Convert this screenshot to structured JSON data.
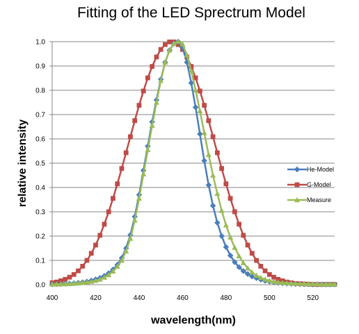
{
  "chart_data": {
    "type": "line",
    "title": "Fitting of the LED Sprectrum Model",
    "xlabel": "wavelength(nm)",
    "ylabel": "relative intensity",
    "xlim": [
      400,
      530
    ],
    "ylim": [
      0,
      1.0
    ],
    "x_ticks": [
      "400",
      "420",
      "440",
      "460",
      "480",
      "500",
      "520"
    ],
    "y_ticks": [
      "0.0",
      "0.1",
      "0.2",
      "0.3",
      "0.4",
      "0.5",
      "0.6",
      "0.7",
      "0.8",
      "0.9",
      "1.0"
    ],
    "grid": "horizontal",
    "legend_position": "right",
    "x": [
      400,
      402,
      404,
      406,
      408,
      410,
      412,
      414,
      416,
      418,
      420,
      422,
      424,
      426,
      428,
      430,
      432,
      434,
      436,
      438,
      440,
      442,
      444,
      446,
      448,
      450,
      452,
      454,
      456,
      458,
      460,
      462,
      464,
      466,
      468,
      470,
      472,
      474,
      476,
      478,
      480,
      482,
      484,
      486,
      488,
      490,
      492,
      494,
      496,
      498,
      500,
      502,
      504,
      506,
      508,
      510,
      512,
      514,
      516,
      518,
      520,
      522,
      524,
      526,
      528,
      530
    ],
    "series": [
      {
        "name": "He-Model",
        "color": "#4a7ebb",
        "marker": "diamond",
        "values": [
          0.002,
          0.002,
          0.003,
          0.004,
          0.005,
          0.006,
          0.008,
          0.01,
          0.013,
          0.017,
          0.022,
          0.028,
          0.036,
          0.047,
          0.062,
          0.082,
          0.11,
          0.15,
          0.205,
          0.28,
          0.37,
          0.47,
          0.57,
          0.67,
          0.76,
          0.845,
          0.915,
          0.965,
          0.992,
          1.0,
          0.975,
          0.915,
          0.83,
          0.73,
          0.62,
          0.51,
          0.41,
          0.325,
          0.255,
          0.2,
          0.155,
          0.12,
          0.093,
          0.072,
          0.056,
          0.044,
          0.034,
          0.027,
          0.021,
          0.016,
          0.013,
          0.01,
          0.008,
          0.006,
          0.005,
          0.004,
          0.003,
          0.002,
          0.002,
          0.002,
          0.001,
          0.001,
          0.001,
          0.001,
          0.001,
          0.001
        ]
      },
      {
        "name": "G-Model",
        "color": "#be4b48",
        "marker": "square",
        "values": [
          0.008,
          0.011,
          0.016,
          0.022,
          0.031,
          0.042,
          0.057,
          0.076,
          0.1,
          0.129,
          0.163,
          0.203,
          0.249,
          0.3,
          0.355,
          0.415,
          0.478,
          0.543,
          0.609,
          0.675,
          0.738,
          0.797,
          0.851,
          0.898,
          0.937,
          0.968,
          0.988,
          0.999,
          0.999,
          0.988,
          0.968,
          0.937,
          0.898,
          0.851,
          0.797,
          0.738,
          0.675,
          0.609,
          0.543,
          0.478,
          0.415,
          0.355,
          0.3,
          0.249,
          0.203,
          0.163,
          0.129,
          0.1,
          0.076,
          0.057,
          0.042,
          0.031,
          0.022,
          0.016,
          0.011,
          0.008,
          0.005,
          0.004,
          0.003,
          0.002,
          0.001,
          0.001,
          0.001,
          0.001,
          0.001,
          0.001
        ]
      },
      {
        "name": "Measure",
        "color": "#9bbb59",
        "marker": "triangle",
        "values": [
          0.002,
          0.002,
          0.003,
          0.003,
          0.004,
          0.005,
          0.006,
          0.008,
          0.01,
          0.013,
          0.017,
          0.022,
          0.03,
          0.04,
          0.055,
          0.075,
          0.1,
          0.138,
          0.19,
          0.265,
          0.355,
          0.455,
          0.555,
          0.655,
          0.75,
          0.84,
          0.915,
          0.965,
          0.993,
          1.0,
          0.99,
          0.945,
          0.88,
          0.8,
          0.715,
          0.625,
          0.535,
          0.45,
          0.375,
          0.305,
          0.245,
          0.195,
          0.153,
          0.118,
          0.09,
          0.068,
          0.051,
          0.038,
          0.029,
          0.022,
          0.017,
          0.013,
          0.01,
          0.008,
          0.007,
          0.006,
          0.005,
          0.004,
          0.004,
          0.003,
          0.003,
          0.003,
          0.002,
          0.002,
          0.002,
          0.002
        ]
      }
    ]
  }
}
